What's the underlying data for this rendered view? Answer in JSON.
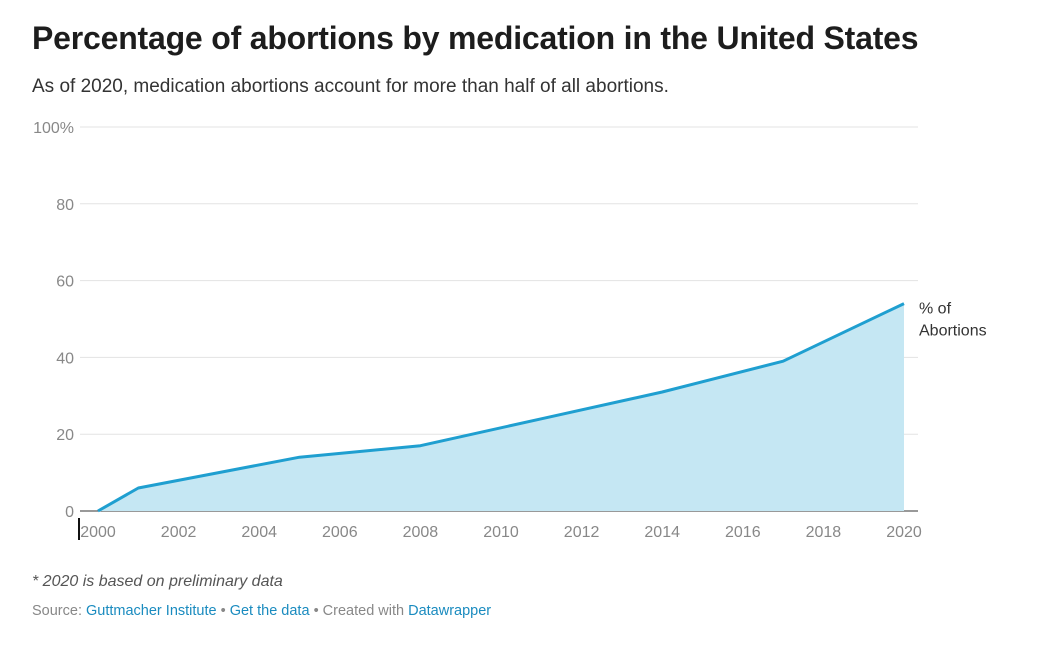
{
  "header": {
    "title": "Percentage of abortions by medication in the United States",
    "subtitle": "As of 2020, medication abortions account for more than half of all abortions."
  },
  "chart_data": {
    "type": "area",
    "title": "Percentage of abortions by medication in the United States",
    "subtitle": "As of 2020, medication abortions account for more than half of all abortions.",
    "xlabel": "",
    "ylabel": "",
    "xlim": [
      2000,
      2020
    ],
    "ylim": [
      0,
      100
    ],
    "x_ticks": [
      2000,
      2002,
      2004,
      2006,
      2008,
      2010,
      2012,
      2014,
      2016,
      2018,
      2020
    ],
    "y_ticks": [
      0,
      20,
      40,
      60,
      80,
      100
    ],
    "y_tick_labels": [
      "0",
      "20",
      "40",
      "60",
      "80",
      "100%"
    ],
    "grid": true,
    "series": [
      {
        "name": "% of Abortions",
        "label_lines": [
          "% of",
          "Abortions"
        ],
        "color": "#1f9fd0",
        "fill_color": "#c5e7f3",
        "x": [
          2000,
          2001,
          2005,
          2008,
          2011,
          2014,
          2017,
          2020
        ],
        "values": [
          0,
          6,
          14,
          17,
          24,
          31,
          39,
          54
        ]
      }
    ]
  },
  "footer": {
    "note": "* 2020 is based on preliminary data",
    "source_prefix": "Source:",
    "source_link": "Guttmacher Institute",
    "separator": "•",
    "data_link": "Get the data",
    "created_with": "Created with",
    "tool_link": "Datawrapper"
  }
}
